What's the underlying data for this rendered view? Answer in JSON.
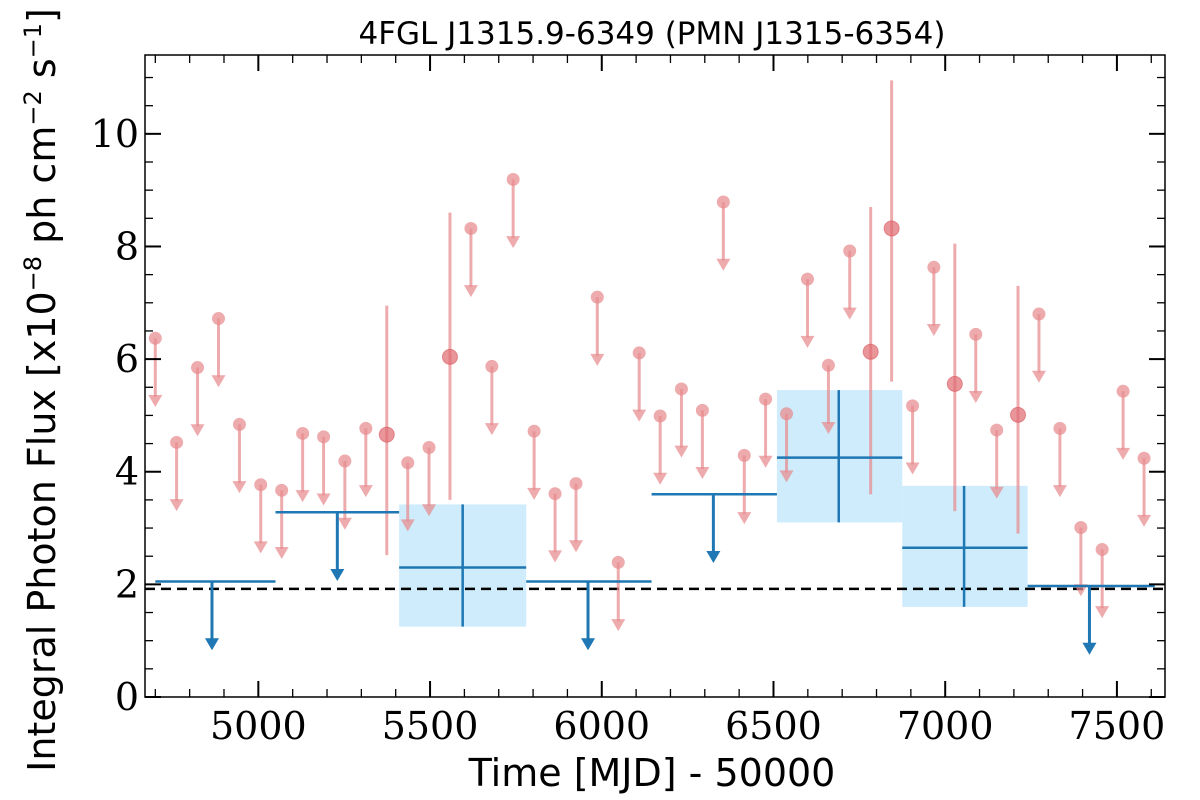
{
  "chart_data": {
    "type": "scatter",
    "title": "4FGL J1315.9-6349 (PMN J1315-6354)",
    "xlabel": "Time [MJD] - 50000",
    "ylabel": "Integral Photon Flux [x10",
    "ylabel_unit_a": "ph cm",
    "ylabel_unit_b": "s",
    "ylabel_exp1": "−8",
    "ylabel_exp2": "−2",
    "ylabel_exp3": "−1",
    "xlim": [
      4670,
      7640
    ],
    "ylim": [
      0,
      11.4
    ],
    "xticks": [
      5000,
      5500,
      6000,
      6500,
      7000,
      7500
    ],
    "yticks": [
      0,
      2,
      4,
      6,
      8,
      10
    ],
    "xtick_labels": [
      "5000",
      "5500",
      "6000",
      "6500",
      "7000",
      "7500"
    ],
    "ytick_labels": [
      "0",
      "2",
      "4",
      "6",
      "8",
      "10"
    ],
    "colors": {
      "short_bins": "#e88a8d",
      "long_bins": "#1f77b4",
      "band_fill": "#bde6fb",
      "baseline": "#000000"
    },
    "baseline_value": 1.92,
    "long_bins": [
      {
        "x": 4865,
        "x_lo": 4700,
        "x_hi": 5050,
        "y": 2.05,
        "upper_limit": true
      },
      {
        "x": 5230,
        "x_lo": 5050,
        "x_hi": 5410,
        "y": 3.28,
        "upper_limit": true
      },
      {
        "x": 5595,
        "x_lo": 5410,
        "x_hi": 5780,
        "y": 2.3,
        "y_lo": 1.25,
        "y_hi": 3.42,
        "upper_limit": false
      },
      {
        "x": 5960,
        "x_lo": 5780,
        "x_hi": 6145,
        "y": 2.05,
        "upper_limit": true
      },
      {
        "x": 6325,
        "x_lo": 6145,
        "x_hi": 6510,
        "y": 3.6,
        "upper_limit": true
      },
      {
        "x": 6690,
        "x_lo": 6510,
        "x_hi": 6875,
        "y": 4.25,
        "y_lo": 3.1,
        "y_hi": 5.45,
        "upper_limit": false
      },
      {
        "x": 7055,
        "x_lo": 6875,
        "x_hi": 7240,
        "y": 2.65,
        "y_lo": 1.6,
        "y_hi": 3.75,
        "upper_limit": false
      },
      {
        "x": 7420,
        "x_lo": 7240,
        "x_hi": 7610,
        "y": 1.97,
        "upper_limit": true
      }
    ],
    "short_bins": [
      {
        "x": 4700,
        "y": 6.37,
        "upper_limit": true
      },
      {
        "x": 4762,
        "y": 4.52,
        "upper_limit": true
      },
      {
        "x": 4823,
        "y": 5.85,
        "upper_limit": true
      },
      {
        "x": 4884,
        "y": 6.72,
        "upper_limit": true
      },
      {
        "x": 4945,
        "y": 4.84,
        "upper_limit": true
      },
      {
        "x": 5007,
        "y": 3.77,
        "upper_limit": true
      },
      {
        "x": 5068,
        "y": 3.67,
        "upper_limit": true
      },
      {
        "x": 5129,
        "y": 4.68,
        "upper_limit": true
      },
      {
        "x": 5190,
        "y": 4.62,
        "upper_limit": true
      },
      {
        "x": 5252,
        "y": 4.19,
        "upper_limit": true
      },
      {
        "x": 5313,
        "y": 4.77,
        "upper_limit": true
      },
      {
        "x": 5374,
        "y": 4.66,
        "y_lo": 2.52,
        "y_hi": 6.95,
        "upper_limit": false
      },
      {
        "x": 5435,
        "y": 4.16,
        "upper_limit": true
      },
      {
        "x": 5497,
        "y": 4.43,
        "upper_limit": true
      },
      {
        "x": 5558,
        "y": 6.04,
        "y_lo": 3.5,
        "y_hi": 8.6,
        "upper_limit": false
      },
      {
        "x": 5619,
        "y": 8.32,
        "upper_limit": true
      },
      {
        "x": 5680,
        "y": 5.87,
        "upper_limit": true
      },
      {
        "x": 5742,
        "y": 9.19,
        "upper_limit": true
      },
      {
        "x": 5803,
        "y": 4.72,
        "upper_limit": true
      },
      {
        "x": 5864,
        "y": 3.61,
        "upper_limit": true
      },
      {
        "x": 5925,
        "y": 3.79,
        "upper_limit": true
      },
      {
        "x": 5987,
        "y": 7.1,
        "upper_limit": true
      },
      {
        "x": 6048,
        "y": 2.39,
        "upper_limit": true
      },
      {
        "x": 6109,
        "y": 6.11,
        "upper_limit": true
      },
      {
        "x": 6170,
        "y": 4.99,
        "upper_limit": true
      },
      {
        "x": 6232,
        "y": 5.47,
        "upper_limit": true
      },
      {
        "x": 6293,
        "y": 5.09,
        "upper_limit": true
      },
      {
        "x": 6354,
        "y": 8.79,
        "upper_limit": true
      },
      {
        "x": 6415,
        "y": 4.29,
        "upper_limit": true
      },
      {
        "x": 6477,
        "y": 5.29,
        "upper_limit": true
      },
      {
        "x": 6538,
        "y": 5.03,
        "upper_limit": true
      },
      {
        "x": 6599,
        "y": 7.42,
        "upper_limit": true
      },
      {
        "x": 6660,
        "y": 5.89,
        "upper_limit": true
      },
      {
        "x": 6722,
        "y": 7.92,
        "upper_limit": true
      },
      {
        "x": 6783,
        "y": 6.13,
        "y_lo": 3.6,
        "y_hi": 8.7,
        "upper_limit": false
      },
      {
        "x": 6844,
        "y": 8.32,
        "y_lo": 5.6,
        "y_hi": 10.95,
        "upper_limit": false
      },
      {
        "x": 6905,
        "y": 5.17,
        "upper_limit": true
      },
      {
        "x": 6967,
        "y": 7.63,
        "upper_limit": true
      },
      {
        "x": 7028,
        "y": 5.56,
        "y_lo": 3.3,
        "y_hi": 8.05,
        "upper_limit": false
      },
      {
        "x": 7089,
        "y": 6.44,
        "upper_limit": true
      },
      {
        "x": 7150,
        "y": 4.74,
        "upper_limit": true
      },
      {
        "x": 7212,
        "y": 5.01,
        "y_lo": 2.9,
        "y_hi": 7.3,
        "upper_limit": false
      },
      {
        "x": 7273,
        "y": 6.8,
        "upper_limit": true
      },
      {
        "x": 7334,
        "y": 4.77,
        "upper_limit": true
      },
      {
        "x": 7395,
        "y": 3.01,
        "upper_limit": true
      },
      {
        "x": 7457,
        "y": 2.62,
        "upper_limit": true
      },
      {
        "x": 7518,
        "y": 5.43,
        "upper_limit": true
      },
      {
        "x": 7579,
        "y": 4.24,
        "upper_limit": true
      }
    ]
  }
}
